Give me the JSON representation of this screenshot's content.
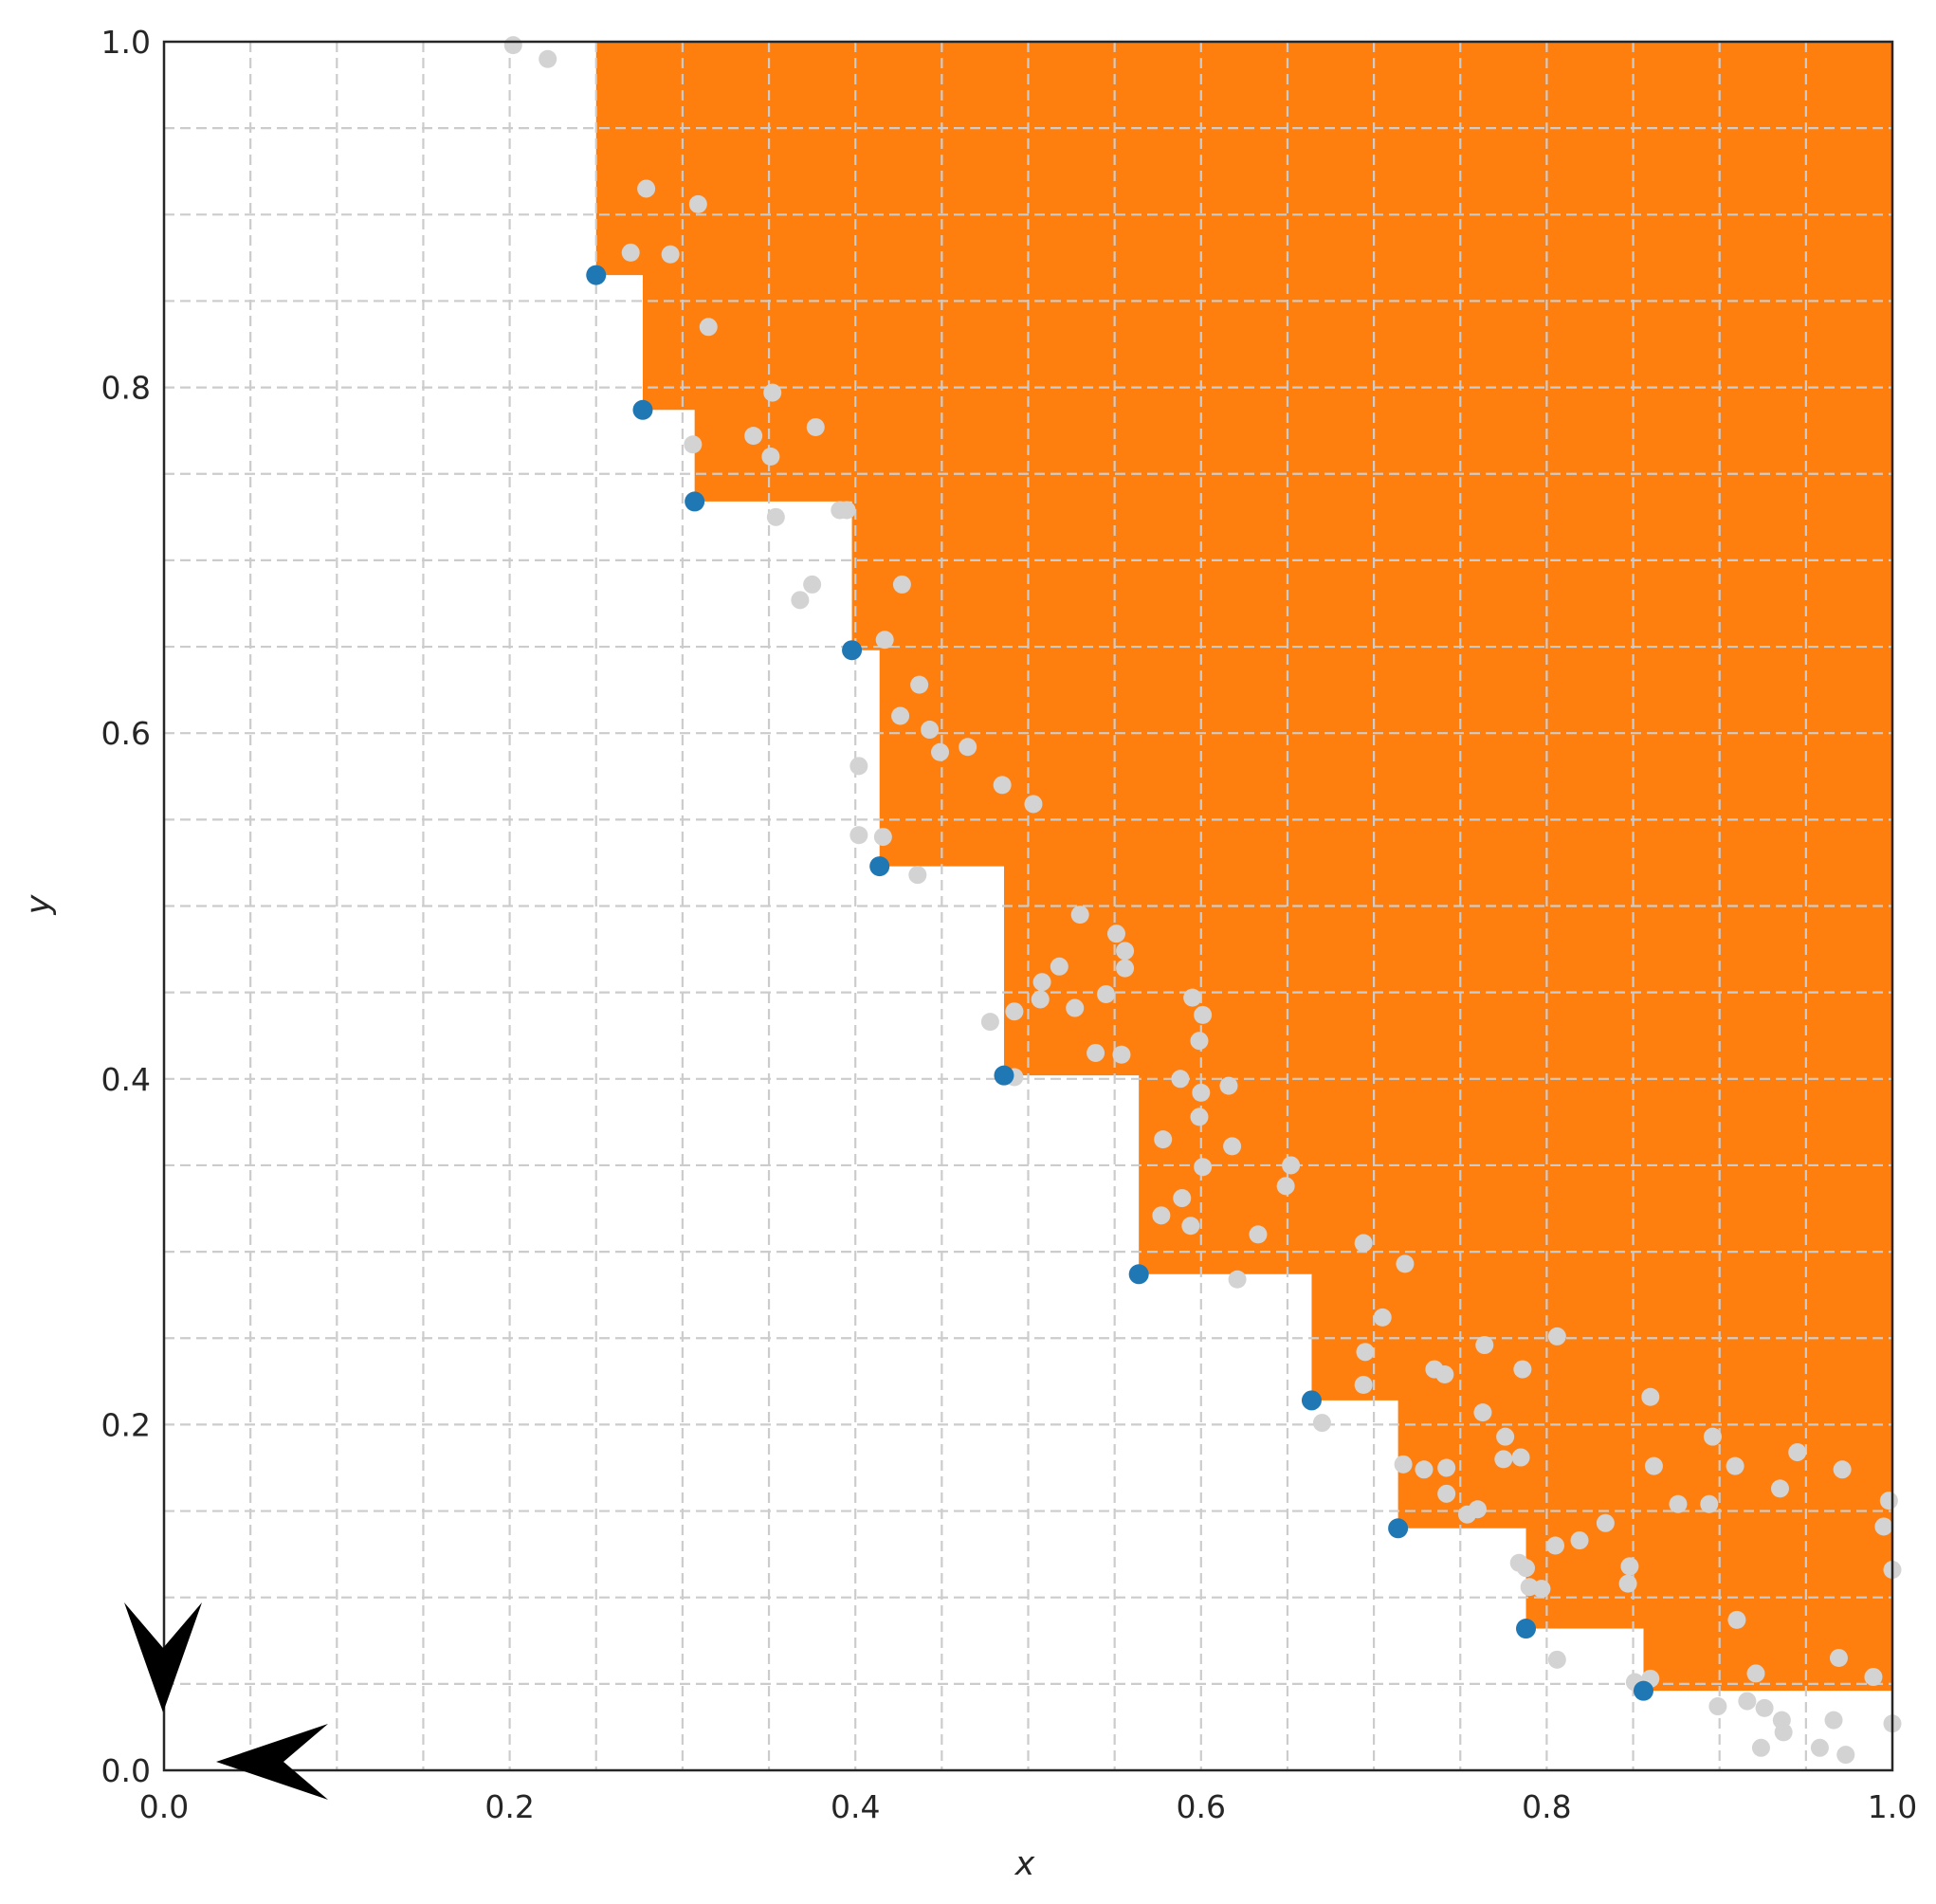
{
  "chart_data": {
    "type": "scatter",
    "title": "",
    "xlabel": "x",
    "ylabel": "y",
    "xlim": [
      0.0,
      1.0
    ],
    "ylim": [
      0.0,
      1.0
    ],
    "xticks": [
      0.0,
      0.2,
      0.4,
      0.6,
      0.8,
      1.0
    ],
    "yticks": [
      0.0,
      0.2,
      0.4,
      0.6,
      0.8,
      1.0
    ],
    "xtick_labels": [
      "0.0",
      "0.2",
      "0.4",
      "0.6",
      "0.8",
      "1.0"
    ],
    "ytick_labels": [
      "0.0",
      "0.2",
      "0.4",
      "0.6",
      "0.8",
      "1.0"
    ],
    "grid": true,
    "grid_step": 0.05,
    "colors": {
      "dominated_region": "#ff7f0e",
      "pareto_points": "#1f77b4",
      "other_points": "#d3d3d3",
      "grid": "#cccccc",
      "axes": "#262626"
    },
    "series": [
      {
        "role": "pareto_front",
        "points": [
          [
            0.25,
            0.865
          ],
          [
            0.277,
            0.787
          ],
          [
            0.307,
            0.734
          ],
          [
            0.398,
            0.648
          ],
          [
            0.414,
            0.523
          ],
          [
            0.486,
            0.402
          ],
          [
            0.564,
            0.287
          ],
          [
            0.664,
            0.214
          ],
          [
            0.714,
            0.14
          ],
          [
            0.788,
            0.082
          ],
          [
            0.856,
            0.046
          ]
        ]
      },
      {
        "role": "dominated_region_boundary",
        "steps": [
          [
            0.25,
            1.0
          ],
          [
            0.25,
            0.865
          ],
          [
            0.277,
            0.865
          ],
          [
            0.277,
            0.787
          ],
          [
            0.307,
            0.787
          ],
          [
            0.307,
            0.734
          ],
          [
            0.398,
            0.734
          ],
          [
            0.398,
            0.648
          ],
          [
            0.414,
            0.648
          ],
          [
            0.414,
            0.523
          ],
          [
            0.486,
            0.523
          ],
          [
            0.486,
            0.402
          ],
          [
            0.564,
            0.402
          ],
          [
            0.564,
            0.287
          ],
          [
            0.664,
            0.287
          ],
          [
            0.664,
            0.214
          ],
          [
            0.714,
            0.214
          ],
          [
            0.714,
            0.14
          ],
          [
            0.788,
            0.14
          ],
          [
            0.788,
            0.082
          ],
          [
            0.856,
            0.082
          ],
          [
            0.856,
            0.046
          ],
          [
            1.0,
            0.046
          ]
        ]
      },
      {
        "role": "other_points",
        "points": [
          [
            0.202,
            0.998
          ],
          [
            0.222,
            0.99
          ],
          [
            0.27,
            0.878
          ],
          [
            0.279,
            0.915
          ],
          [
            0.293,
            0.877
          ],
          [
            0.309,
            0.906
          ],
          [
            0.315,
            0.835
          ],
          [
            0.306,
            0.767
          ],
          [
            0.341,
            0.772
          ],
          [
            0.352,
            0.797
          ],
          [
            0.351,
            0.76
          ],
          [
            0.354,
            0.725
          ],
          [
            0.377,
            0.777
          ],
          [
            0.391,
            0.729
          ],
          [
            0.395,
            0.729
          ],
          [
            0.368,
            0.677
          ],
          [
            0.375,
            0.686
          ],
          [
            0.427,
            0.686
          ],
          [
            0.417,
            0.654
          ],
          [
            0.437,
            0.628
          ],
          [
            0.426,
            0.61
          ],
          [
            0.443,
            0.602
          ],
          [
            0.449,
            0.589
          ],
          [
            0.465,
            0.592
          ],
          [
            0.402,
            0.581
          ],
          [
            0.485,
            0.57
          ],
          [
            0.503,
            0.559
          ],
          [
            0.402,
            0.541
          ],
          [
            0.416,
            0.54
          ],
          [
            0.436,
            0.518
          ],
          [
            0.53,
            0.495
          ],
          [
            0.551,
            0.484
          ],
          [
            0.556,
            0.474
          ],
          [
            0.556,
            0.464
          ],
          [
            0.518,
            0.465
          ],
          [
            0.508,
            0.456
          ],
          [
            0.507,
            0.446
          ],
          [
            0.545,
            0.449
          ],
          [
            0.527,
            0.441
          ],
          [
            0.492,
            0.439
          ],
          [
            0.478,
            0.433
          ],
          [
            0.595,
            0.447
          ],
          [
            0.601,
            0.437
          ],
          [
            0.599,
            0.422
          ],
          [
            0.539,
            0.415
          ],
          [
            0.554,
            0.414
          ],
          [
            0.492,
            0.401
          ],
          [
            0.588,
            0.4
          ],
          [
            0.6,
            0.392
          ],
          [
            0.616,
            0.396
          ],
          [
            0.599,
            0.378
          ],
          [
            0.578,
            0.365
          ],
          [
            0.618,
            0.361
          ],
          [
            0.601,
            0.349
          ],
          [
            0.652,
            0.35
          ],
          [
            0.649,
            0.338
          ],
          [
            0.589,
            0.331
          ],
          [
            0.577,
            0.321
          ],
          [
            0.594,
            0.315
          ],
          [
            0.633,
            0.31
          ],
          [
            0.694,
            0.305
          ],
          [
            0.621,
            0.284
          ],
          [
            0.718,
            0.293
          ],
          [
            0.705,
            0.262
          ],
          [
            0.695,
            0.242
          ],
          [
            0.694,
            0.223
          ],
          [
            0.764,
            0.246
          ],
          [
            0.806,
            0.251
          ],
          [
            0.786,
            0.232
          ],
          [
            0.735,
            0.232
          ],
          [
            0.741,
            0.229
          ],
          [
            0.67,
            0.201
          ],
          [
            0.763,
            0.207
          ],
          [
            0.776,
            0.193
          ],
          [
            0.775,
            0.18
          ],
          [
            0.785,
            0.181
          ],
          [
            0.717,
            0.177
          ],
          [
            0.729,
            0.174
          ],
          [
            0.742,
            0.175
          ],
          [
            0.742,
            0.16
          ],
          [
            0.86,
            0.216
          ],
          [
            0.896,
            0.193
          ],
          [
            0.862,
            0.176
          ],
          [
            0.909,
            0.176
          ],
          [
            0.945,
            0.184
          ],
          [
            0.971,
            0.174
          ],
          [
            0.76,
            0.151
          ],
          [
            0.754,
            0.148
          ],
          [
            0.876,
            0.154
          ],
          [
            0.894,
            0.154
          ],
          [
            0.935,
            0.163
          ],
          [
            0.998,
            0.156
          ],
          [
            0.995,
            0.141
          ],
          [
            0.834,
            0.143
          ],
          [
            0.819,
            0.133
          ],
          [
            0.805,
            0.13
          ],
          [
            0.784,
            0.12
          ],
          [
            0.788,
            0.117
          ],
          [
            0.79,
            0.106
          ],
          [
            0.797,
            0.105
          ],
          [
            0.848,
            0.118
          ],
          [
            0.847,
            0.108
          ],
          [
            1.0,
            0.116
          ],
          [
            0.91,
            0.087
          ],
          [
            0.806,
            0.064
          ],
          [
            0.921,
            0.056
          ],
          [
            0.969,
            0.065
          ],
          [
            0.989,
            0.054
          ],
          [
            0.851,
            0.051
          ],
          [
            0.86,
            0.053
          ],
          [
            0.916,
            0.04
          ],
          [
            0.926,
            0.036
          ],
          [
            0.936,
            0.029
          ],
          [
            0.937,
            0.022
          ],
          [
            0.958,
            0.013
          ],
          [
            0.966,
            0.029
          ],
          [
            0.973,
            0.009
          ],
          [
            0.899,
            0.037
          ],
          [
            0.924,
            0.013
          ],
          [
            1.0,
            0.027
          ]
        ]
      }
    ]
  }
}
